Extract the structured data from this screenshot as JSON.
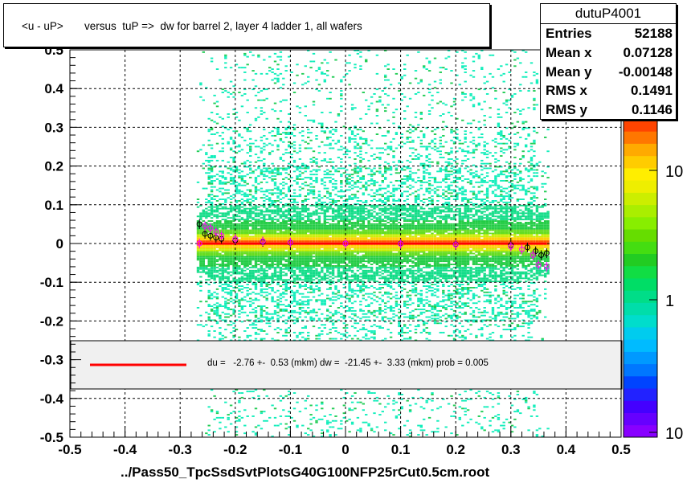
{
  "title": "<u - uP>       versus  tuP =>  dw for barrel 2, layer 4 ladder 1, all wafers",
  "x_axis_title": "../Pass50_TpcSsdSvtPlotsG40G100NFP25rCut0.5cm.root",
  "stats_box": {
    "name": "dutuP4001",
    "rows": [
      {
        "label": "Entries",
        "value": "52188"
      },
      {
        "label": "Mean x",
        "value": "0.07128"
      },
      {
        "label": "Mean y",
        "value": "-0.00148"
      },
      {
        "label": "RMS x",
        "value": "0.1491"
      },
      {
        "label": "RMS y",
        "value": "0.1146"
      }
    ]
  },
  "fit_text": "du =   -2.76 +-  0.53 (mkm) dw =  -21.45 +-  3.33 (mkm) prob = 0.005",
  "colors": {
    "fit_line": "#ff0000",
    "profile_black": "#000000",
    "profile_magenta": "#ff00ff"
  },
  "chart_data": {
    "type": "heatmap",
    "title": "<u - uP>       versus  tuP =>  dw for barrel 2, layer 4 ladder 1, all wafers",
    "xlabel": "../Pass50_TpcSsdSvtPlotsG40G100NFP25rCut0.5cm.root",
    "ylabel": "",
    "xlim": [
      -0.5,
      0.5
    ],
    "ylim": [
      -0.5,
      0.5
    ],
    "x_ticks": [
      "-0.5",
      "-0.4",
      "-0.3",
      "-0.2",
      "-0.1",
      "0",
      "0.1",
      "0.2",
      "0.3",
      "0.4",
      "0.5"
    ],
    "y_ticks": [
      "0.5",
      "0.4",
      "0.3",
      "0.2",
      "0.1",
      "0",
      "-0.1",
      "-0.2",
      "-0.3",
      "-0.4",
      "-0.5"
    ],
    "grid": true,
    "z_scale": "log",
    "z_tick_labels": [
      "10",
      "1",
      "10"
    ],
    "occupied_x_range": [
      -0.27,
      0.37
    ],
    "fit_line": {
      "x": [
        -0.265,
        0.365
      ],
      "y": [
        0.0,
        0.0
      ]
    },
    "profile_black": [
      {
        "x": -0.265,
        "y": 0.05
      },
      {
        "x": -0.255,
        "y": 0.025
      },
      {
        "x": -0.245,
        "y": 0.02
      },
      {
        "x": -0.235,
        "y": 0.015
      },
      {
        "x": -0.225,
        "y": 0.012
      },
      {
        "x": -0.2,
        "y": 0.008
      },
      {
        "x": -0.15,
        "y": 0.004
      },
      {
        "x": -0.1,
        "y": 0.002
      },
      {
        "x": 0.0,
        "y": 0.0
      },
      {
        "x": 0.1,
        "y": 0.0
      },
      {
        "x": 0.2,
        "y": -0.002
      },
      {
        "x": 0.3,
        "y": -0.004
      },
      {
        "x": 0.33,
        "y": -0.01
      },
      {
        "x": 0.345,
        "y": -0.02
      },
      {
        "x": 0.355,
        "y": -0.03
      },
      {
        "x": 0.365,
        "y": -0.025
      }
    ],
    "profile_magenta": [
      {
        "x": -0.265,
        "y": 0.0
      },
      {
        "x": -0.255,
        "y": 0.045
      },
      {
        "x": -0.245,
        "y": 0.04
      },
      {
        "x": -0.235,
        "y": 0.03
      },
      {
        "x": -0.225,
        "y": 0.02
      },
      {
        "x": -0.2,
        "y": 0.012
      },
      {
        "x": -0.15,
        "y": 0.006
      },
      {
        "x": -0.1,
        "y": 0.003
      },
      {
        "x": 0.0,
        "y": 0.0
      },
      {
        "x": 0.1,
        "y": -0.001
      },
      {
        "x": 0.2,
        "y": -0.003
      },
      {
        "x": 0.3,
        "y": -0.008
      },
      {
        "x": 0.32,
        "y": -0.015
      },
      {
        "x": 0.34,
        "y": -0.03
      },
      {
        "x": 0.35,
        "y": -0.055
      },
      {
        "x": 0.365,
        "y": -0.06
      }
    ]
  }
}
